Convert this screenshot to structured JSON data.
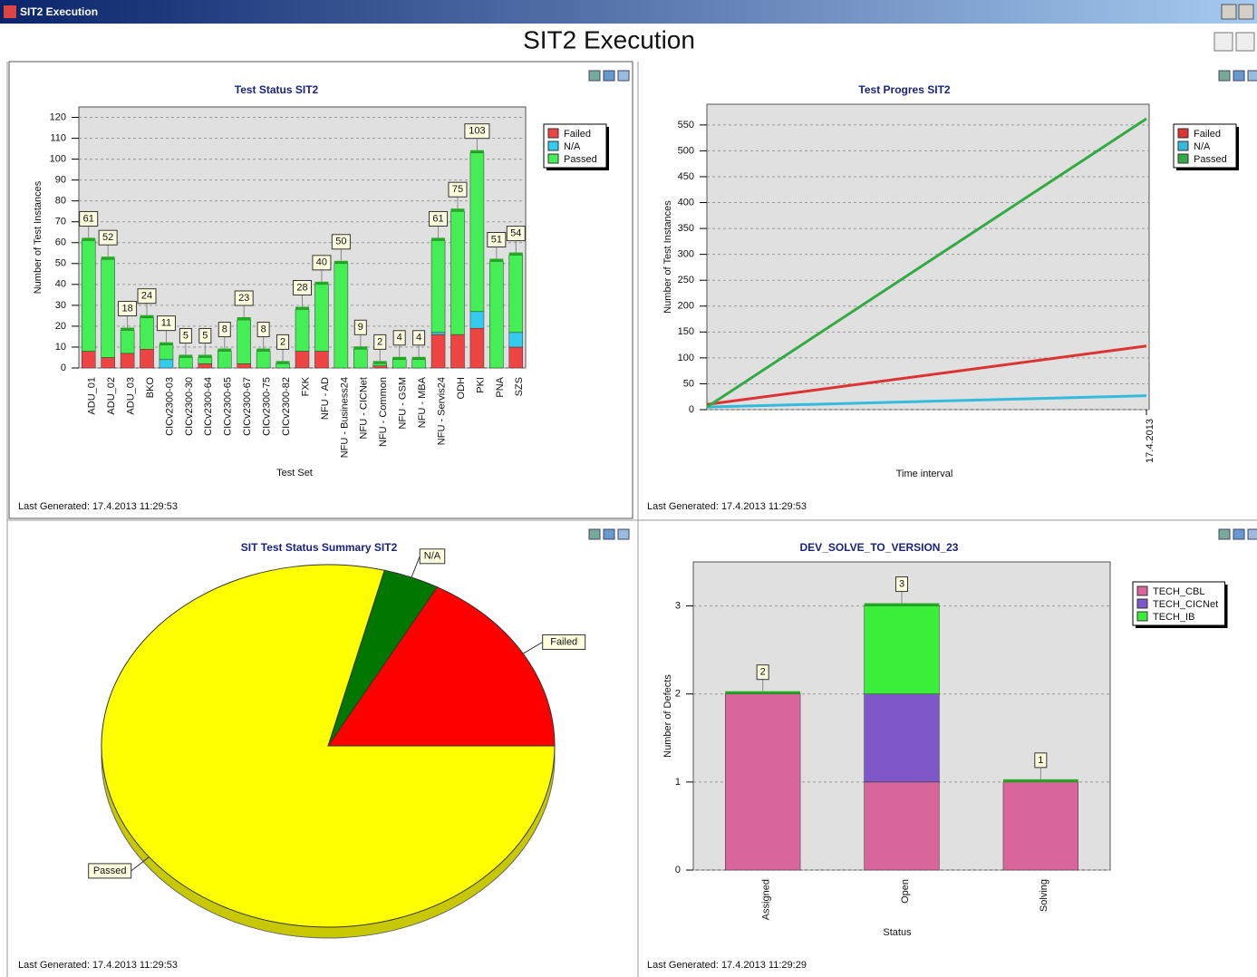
{
  "window": {
    "title": "SIT2 Execution"
  },
  "header": {
    "title": "SIT2 Execution"
  },
  "chart_data": [
    {
      "type": "stacked_bar",
      "title": "Test Status SIT2",
      "x_label": "Test Set",
      "y_label": "Number of Test Instances",
      "categories": [
        "ADU_01",
        "ADU_02",
        "ADU_03",
        "BKO",
        "CICv2300-03",
        "CICv2300-30",
        "CICv2300-64",
        "CICv2300-65",
        "CICv2300-67",
        "CICv2300-75",
        "CICv2300-82",
        "FXK",
        "NFU - AD",
        "NFU - Business24",
        "NFU - CICNet",
        "NFU - Common",
        "NFU - GSM",
        "NFU - MBA",
        "NFU - Servis24",
        "ODH",
        "PKI",
        "PNA",
        "SZS"
      ],
      "series": [
        {
          "name": "Failed",
          "color": "#ee4444",
          "values": [
            8,
            5,
            7,
            9,
            0,
            0,
            2,
            0,
            2,
            0,
            0,
            8,
            8,
            0,
            0,
            1,
            0,
            0,
            16,
            16,
            19,
            0,
            10
          ]
        },
        {
          "name": "N/A",
          "color": "#33ccee",
          "values": [
            0,
            0,
            0,
            0,
            4,
            0,
            0,
            0,
            0,
            0,
            0,
            0,
            0,
            0,
            0,
            0,
            0,
            0,
            1,
            0,
            8,
            0,
            7
          ]
        },
        {
          "name": "Passed",
          "color": "#44ee55",
          "values": [
            53,
            47,
            11,
            15,
            7,
            5,
            3,
            8,
            21,
            8,
            2,
            20,
            32,
            50,
            9,
            1,
            4,
            4,
            44,
            59,
            76,
            51,
            37
          ]
        }
      ],
      "total_labels": [
        61,
        52,
        18,
        24,
        11,
        5,
        5,
        8,
        23,
        8,
        2,
        28,
        40,
        50,
        9,
        2,
        4,
        4,
        61,
        75,
        103,
        51,
        54
      ],
      "ylim": [
        0,
        125
      ],
      "yticks": [
        0,
        10,
        20,
        30,
        40,
        50,
        60,
        70,
        80,
        90,
        100,
        110,
        120
      ],
      "grid": true,
      "legend": "top-right",
      "footer": "Last Generated: 17.4.2013 11:29:53"
    },
    {
      "type": "line",
      "title": "Test Progres SIT2",
      "x_label": "Time interval",
      "y_label": "Number of Test Instances",
      "categories": [
        null,
        "17.4.2013"
      ],
      "series": [
        {
          "name": "Failed",
          "color": "#dd3333",
          "values": [
            10,
            123
          ]
        },
        {
          "name": "N/A",
          "color": "#33bbdd",
          "values": [
            5,
            27
          ]
        },
        {
          "name": "Passed",
          "color": "#33aa44",
          "values": [
            5,
            562
          ]
        }
      ],
      "ylim": [
        0,
        590
      ],
      "yticks": [
        0,
        50,
        100,
        150,
        200,
        250,
        300,
        350,
        400,
        450,
        500,
        550
      ],
      "grid": true,
      "legend": "top-right",
      "footer": "Last Generated: 17.4.2013 11:29:53"
    },
    {
      "type": "pie",
      "title": "SIT Test Status Summary SIT2",
      "categories": [
        "Failed",
        "N/A",
        "Passed"
      ],
      "values": [
        17,
        4,
        79
      ],
      "colors": [
        "#ff0000",
        "#007700",
        "#ffff00"
      ],
      "footer": "Last Generated: 17.4.2013 11:29:53"
    },
    {
      "type": "stacked_bar",
      "title": "DEV_SOLVE_TO_VERSION_23",
      "x_label": "Status",
      "y_label": "Number of Defects",
      "categories": [
        "Assigned",
        "Open",
        "Solving"
      ],
      "series": [
        {
          "name": "TECH_CBL",
          "color": "#d9669a",
          "values": [
            2,
            1,
            1
          ]
        },
        {
          "name": "TECH_CICNet",
          "color": "#7e57c8",
          "values": [
            0,
            1,
            0
          ]
        },
        {
          "name": "TECH_IB",
          "color": "#3aee3a",
          "values": [
            0,
            1,
            0
          ]
        }
      ],
      "total_labels": [
        2,
        3,
        1
      ],
      "ylim": [
        0,
        3.5
      ],
      "yticks": [
        0,
        1,
        2,
        3
      ],
      "grid": true,
      "legend": "top-right",
      "footer": "Last Generated: 17.4.2013 11:29:29"
    }
  ]
}
